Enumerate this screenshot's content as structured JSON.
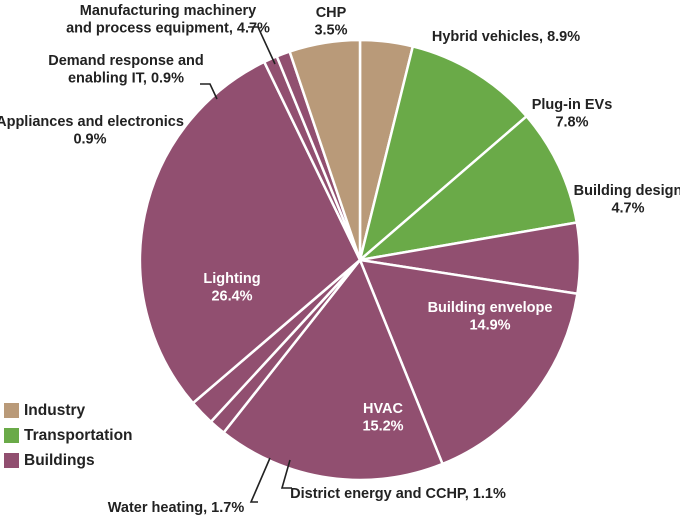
{
  "colors": {
    "Industry": "#b99a79",
    "Transportation": "#6aaa48",
    "Buildings": "#914f70"
  },
  "chart_data": {
    "type": "pie",
    "title": "",
    "legend": {
      "placement": "bottom-left",
      "entries": [
        "Industry",
        "Transportation",
        "Buildings"
      ]
    },
    "slices": [
      {
        "label": "CHP",
        "value": 3.5,
        "group": "Industry",
        "text": [
          "CHP",
          "3.5%"
        ]
      },
      {
        "label": "Hybrid vehicles",
        "value": 8.9,
        "group": "Transportation",
        "text": [
          "Hybrid vehicles, 8.9%"
        ]
      },
      {
        "label": "Plug-in EVs",
        "value": 7.8,
        "group": "Transportation",
        "text": [
          "Plug-in EVs",
          "7.8%"
        ]
      },
      {
        "label": "Building design",
        "value": 4.7,
        "group": "Buildings",
        "text": [
          "Building design",
          "4.7%"
        ]
      },
      {
        "label": "Building envelope",
        "value": 14.9,
        "group": "Buildings",
        "text": [
          "Building envelope",
          "14.9%"
        ]
      },
      {
        "label": "HVAC",
        "value": 15.2,
        "group": "Buildings",
        "text": [
          "HVAC",
          "15.2%"
        ]
      },
      {
        "label": "District energy and CCHP",
        "value": 1.1,
        "group": "Buildings",
        "text": [
          "District energy and CCHP, 1.1%"
        ]
      },
      {
        "label": "Water heating",
        "value": 1.7,
        "group": "Buildings",
        "text": [
          "Water heating, 1.7%"
        ]
      },
      {
        "label": "Lighting",
        "value": 26.4,
        "group": "Buildings",
        "text": [
          "Lighting",
          "26.4%"
        ]
      },
      {
        "label": "Appliances and electronics",
        "value": 0.9,
        "group": "Buildings",
        "text": [
          "Appliances  and electronics",
          "0.9%"
        ]
      },
      {
        "label": "Demand response and enabling IT",
        "value": 0.9,
        "group": "Buildings",
        "text": [
          "Demand response and",
          "enabling IT, 0.9%"
        ]
      },
      {
        "label": "Manufacturing machinery and process equipment",
        "value": 4.7,
        "group": "Industry",
        "text": [
          "Manufacturing machinery",
          "and process equipment, 4.7%"
        ]
      }
    ]
  }
}
